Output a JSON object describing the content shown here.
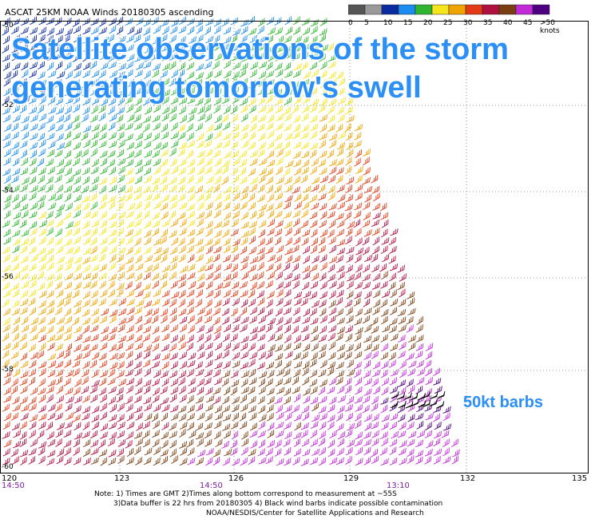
{
  "header": {
    "title": "ASCAT 25KM NOAA Winds 20180305 ascending"
  },
  "overlay": {
    "line1": "Satellite observations of the storm",
    "line2": "generating tomorrow's swell",
    "barbs_label": "50kt barbs"
  },
  "legend": {
    "labels": [
      "0",
      "5",
      "10",
      "15",
      "20",
      "25",
      "30",
      "35",
      "40",
      "45",
      ">50 knots"
    ],
    "colors": [
      "#555555",
      "#9a9a9a",
      "#0a2aa0",
      "#1b8cf0",
      "#2fb52f",
      "#f4e51c",
      "#f0a400",
      "#e23a14",
      "#b01040",
      "#7a3e12",
      "#c22ad8",
      "#4d007f"
    ]
  },
  "map": {
    "lat_labels": [
      "-50",
      "-52",
      "-54",
      "-56",
      "-58",
      "-60"
    ],
    "lon_labels": [
      "120",
      "123",
      "126",
      "129",
      "132",
      "135"
    ],
    "time_labels": [
      "14:50",
      "14:50",
      "13:10"
    ],
    "colors": {
      "grid": "#777777",
      "barb_black": "#000000",
      "overlay_text": "#2b8ff5",
      "time_text": "#7a1fa0"
    }
  },
  "notes": {
    "line1": "Note: 1) Times are GMT 2)Times along bottom correspond to measurement at ~55S",
    "line2": "3)Data buffer is 22 hrs from 20180305 4) Black wind barbs indicate possible contamination",
    "line3": "NOAA/NESDIS/Center for Satellite Applications and Research"
  }
}
